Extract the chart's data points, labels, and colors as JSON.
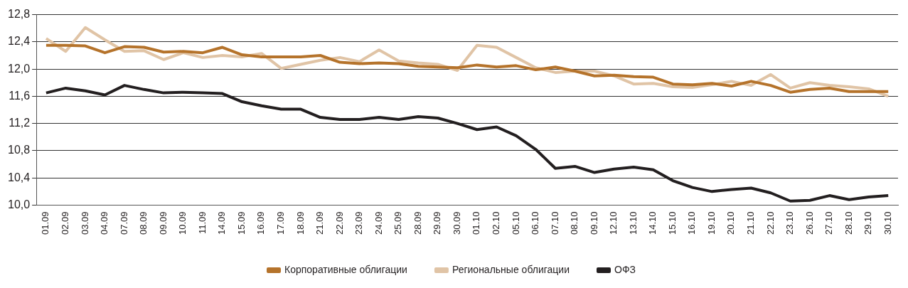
{
  "chart_data": {
    "type": "line",
    "categories": [
      "01.09",
      "02.09",
      "03.09",
      "04.09",
      "07.09",
      "08.09",
      "09.09",
      "10.09",
      "11.09",
      "14.09",
      "15.09",
      "16.09",
      "17.09",
      "18.09",
      "21.09",
      "22.09",
      "23.09",
      "24.09",
      "25.09",
      "28.09",
      "29.09",
      "30.09",
      "01.10",
      "02.10",
      "05.10",
      "06.10",
      "07.10",
      "08.10",
      "09.10",
      "12.10",
      "13.10",
      "14.10",
      "15.10",
      "16.10",
      "19.10",
      "20.10",
      "21.10",
      "22.10",
      "23.10",
      "26.10",
      "27.10",
      "28.10",
      "29.10",
      "30.10"
    ],
    "series": [
      {
        "name": "Корпоративные облигации",
        "color": "#b5732b",
        "values": [
          12.35,
          12.35,
          12.34,
          12.24,
          12.33,
          12.32,
          12.25,
          12.26,
          12.24,
          12.32,
          12.21,
          12.18,
          12.18,
          12.18,
          12.2,
          12.1,
          12.08,
          12.09,
          12.08,
          12.04,
          12.03,
          12.02,
          12.06,
          12.03,
          12.05,
          11.99,
          12.03,
          11.97,
          11.9,
          11.91,
          11.89,
          11.88,
          11.78,
          11.77,
          11.79,
          11.75,
          11.82,
          11.76,
          11.66,
          11.7,
          11.72,
          11.67,
          11.67,
          11.67
        ]
      },
      {
        "name": "Региональные облигации",
        "color": "#e0c4a6",
        "values": [
          12.45,
          12.26,
          12.61,
          12.43,
          12.26,
          12.27,
          12.14,
          12.24,
          12.17,
          12.2,
          12.18,
          12.23,
          12.01,
          12.07,
          12.13,
          12.17,
          12.11,
          12.28,
          12.12,
          12.09,
          12.07,
          11.98,
          12.35,
          12.32,
          12.17,
          12.02,
          11.95,
          11.97,
          11.97,
          11.9,
          11.78,
          11.79,
          11.74,
          11.73,
          11.77,
          11.82,
          11.76,
          11.92,
          11.72,
          11.8,
          11.76,
          11.74,
          11.71,
          11.6
        ]
      },
      {
        "name": "ОФЗ",
        "color": "#231f20",
        "values": [
          11.65,
          11.72,
          11.68,
          11.62,
          11.76,
          11.7,
          11.65,
          11.66,
          11.65,
          11.64,
          11.52,
          11.46,
          11.41,
          11.41,
          11.29,
          11.26,
          11.26,
          11.29,
          11.26,
          11.3,
          11.28,
          11.2,
          11.11,
          11.15,
          11.02,
          10.82,
          10.54,
          10.57,
          10.48,
          10.53,
          10.56,
          10.52,
          10.36,
          10.26,
          10.2,
          10.23,
          10.25,
          10.18,
          10.06,
          10.07,
          10.14,
          10.08,
          10.12,
          10.14
        ]
      }
    ],
    "ylim": [
      10.0,
      12.8
    ],
    "yticks": [
      {
        "value": 10.0,
        "label": "10,0"
      },
      {
        "value": 10.4,
        "label": "10,4"
      },
      {
        "value": 10.8,
        "label": "10,8"
      },
      {
        "value": 11.2,
        "label": "11,2"
      },
      {
        "value": 11.6,
        "label": "11,6"
      },
      {
        "value": 12.0,
        "label": "12,0"
      },
      {
        "value": 12.4,
        "label": "12,4"
      },
      {
        "value": 12.8,
        "label": "12,8"
      }
    ],
    "grid": "y",
    "legend": "bottom",
    "marker": "none",
    "line_style": "solid"
  }
}
